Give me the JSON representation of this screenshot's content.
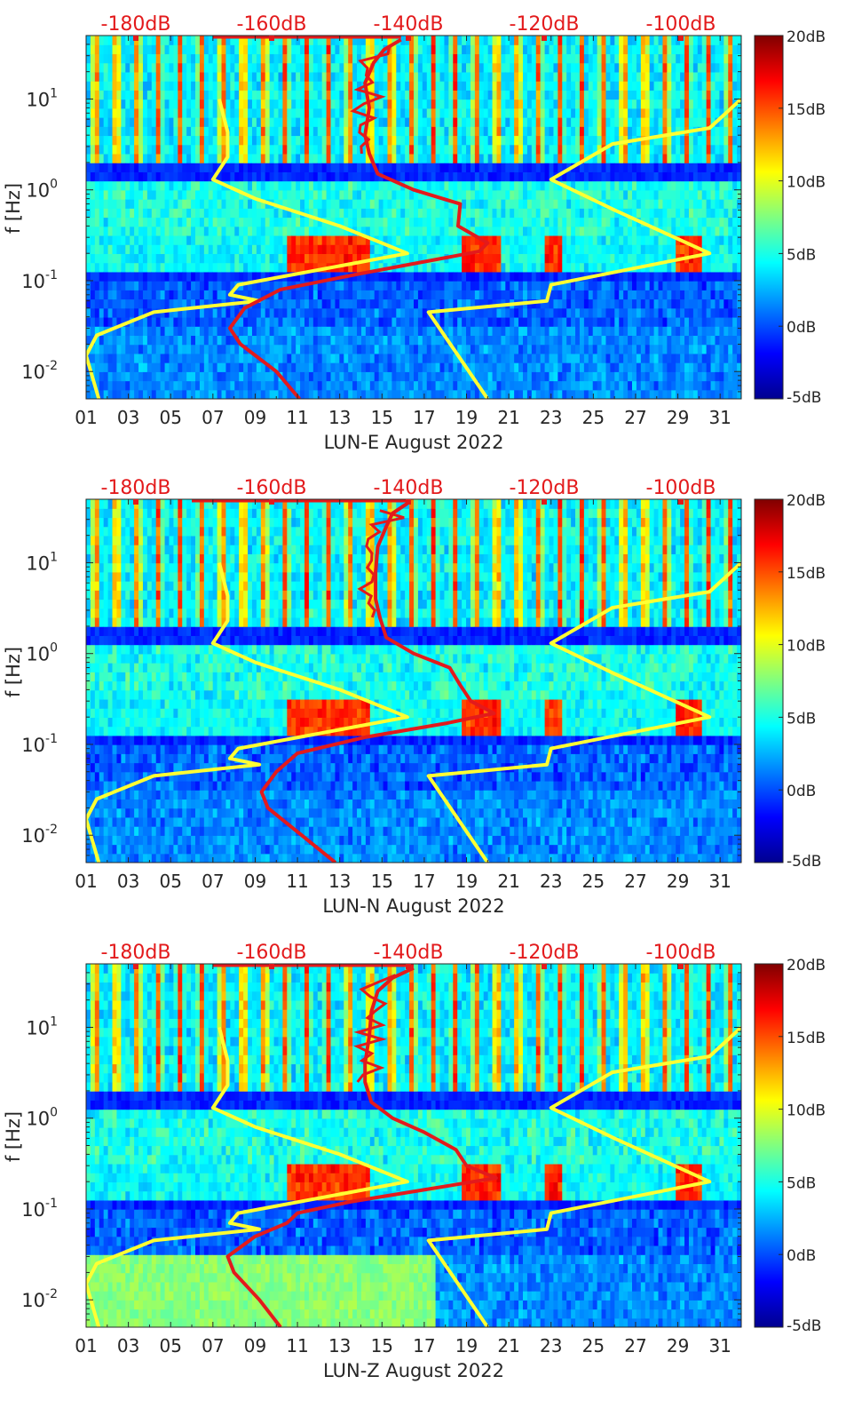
{
  "chart_data": [
    {
      "type": "heatmap",
      "xlabel": "LUN-E August 2022",
      "ylabel": "f [Hz]",
      "xticks": [
        "01",
        "03",
        "05",
        "07",
        "09",
        "11",
        "13",
        "15",
        "17",
        "19",
        "21",
        "23",
        "25",
        "27",
        "29",
        "31"
      ],
      "yticks": [
        {
          "base": "10",
          "exp": "-2",
          "value": 0.01
        },
        {
          "base": "10",
          "exp": "-1",
          "value": 0.1
        },
        {
          "base": "10",
          "exp": "0",
          "value": 1
        },
        {
          "base": "10",
          "exp": "1",
          "value": 10
        }
      ],
      "xlim": [
        1,
        32
      ],
      "ylim": [
        0.005,
        50
      ],
      "yscale": "log",
      "top_axis_labels": [
        "-180dB",
        "-160dB",
        "-140dB",
        "-120dB",
        "-100dB"
      ],
      "colorbar": {
        "labels": [
          "20dB",
          "15dB",
          "10dB",
          "5dB",
          "0dB",
          "-5dB"
        ],
        "range": [
          -5,
          20
        ]
      },
      "colors": {
        "low_model": "#ffff33",
        "high_model": "#ffff33",
        "median": "#e31a1c",
        "top_axis": "#e31a1c"
      },
      "noise_models": {
        "low": [
          [
            0.005,
            1.6
          ],
          [
            0.015,
            1.0
          ],
          [
            0.025,
            1.5
          ],
          [
            0.045,
            4.2
          ],
          [
            0.06,
            9.2
          ],
          [
            0.07,
            7.8
          ],
          [
            0.09,
            8.2
          ],
          [
            0.2,
            16.2
          ],
          [
            0.4,
            13.0
          ],
          [
            0.8,
            9.0
          ],
          [
            1.3,
            7.0
          ],
          [
            2.3,
            7.7
          ],
          [
            4.3,
            7.7
          ],
          [
            10,
            7.3
          ]
        ],
        "high": [
          [
            0.005,
            20.0
          ],
          [
            0.045,
            17.2
          ],
          [
            0.06,
            22.8
          ],
          [
            0.09,
            23.0
          ],
          [
            0.2,
            30.5
          ],
          [
            0.6,
            26.0
          ],
          [
            1.3,
            23.0
          ],
          [
            3.2,
            25.9
          ],
          [
            4.8,
            30.5
          ],
          [
            10,
            32.0
          ]
        ]
      },
      "median_psd": [
        [
          0.005,
          11.1
        ],
        [
          0.01,
          10.0
        ],
        [
          0.02,
          8.3
        ],
        [
          0.03,
          7.8
        ],
        [
          0.05,
          8.5
        ],
        [
          0.08,
          10.2
        ],
        [
          0.12,
          14.0
        ],
        [
          0.17,
          17.5
        ],
        [
          0.21,
          19.6
        ],
        [
          0.26,
          20.0
        ],
        [
          0.4,
          18.6
        ],
        [
          0.7,
          18.7
        ],
        [
          1.0,
          16.5
        ],
        [
          1.5,
          14.8
        ],
        [
          2.5,
          14.4
        ],
        [
          4,
          14.2
        ],
        [
          8,
          14.4
        ],
        [
          15,
          14.2
        ],
        [
          25,
          14.6
        ],
        [
          35,
          15.1
        ],
        [
          45,
          15.9
        ]
      ],
      "median_top_start": 7.0
    },
    {
      "type": "heatmap",
      "xlabel": "LUN-N August 2022",
      "ylabel": "f [Hz]",
      "xticks": [
        "01",
        "03",
        "05",
        "07",
        "09",
        "11",
        "13",
        "15",
        "17",
        "19",
        "21",
        "23",
        "25",
        "27",
        "29",
        "31"
      ],
      "yticks": [
        {
          "base": "10",
          "exp": "-2",
          "value": 0.01
        },
        {
          "base": "10",
          "exp": "-1",
          "value": 0.1
        },
        {
          "base": "10",
          "exp": "0",
          "value": 1
        },
        {
          "base": "10",
          "exp": "1",
          "value": 10
        }
      ],
      "xlim": [
        1,
        32
      ],
      "ylim": [
        0.005,
        50
      ],
      "yscale": "log",
      "top_axis_labels": [
        "-180dB",
        "-160dB",
        "-140dB",
        "-120dB",
        "-100dB"
      ],
      "colorbar": {
        "labels": [
          "20dB",
          "15dB",
          "10dB",
          "5dB",
          "0dB",
          "-5dB"
        ],
        "range": [
          -5,
          20
        ]
      },
      "colors": {
        "low_model": "#ffff33",
        "high_model": "#ffff33",
        "median": "#e31a1c",
        "top_axis": "#e31a1c"
      },
      "noise_models": {
        "low": [
          [
            0.005,
            1.6
          ],
          [
            0.015,
            1.0
          ],
          [
            0.025,
            1.5
          ],
          [
            0.045,
            4.2
          ],
          [
            0.06,
            9.2
          ],
          [
            0.07,
            7.8
          ],
          [
            0.09,
            8.2
          ],
          [
            0.2,
            16.2
          ],
          [
            0.4,
            13.0
          ],
          [
            0.8,
            9.0
          ],
          [
            1.3,
            7.0
          ],
          [
            2.3,
            7.7
          ],
          [
            4.3,
            7.7
          ],
          [
            10,
            7.3
          ]
        ],
        "high": [
          [
            0.005,
            20.0
          ],
          [
            0.045,
            17.2
          ],
          [
            0.06,
            22.8
          ],
          [
            0.09,
            23.0
          ],
          [
            0.2,
            30.5
          ],
          [
            0.6,
            26.0
          ],
          [
            1.3,
            23.0
          ],
          [
            3.2,
            25.9
          ],
          [
            4.8,
            30.5
          ],
          [
            10,
            32.0
          ]
        ]
      },
      "median_psd": [
        [
          0.005,
          12.8
        ],
        [
          0.01,
          11.2
        ],
        [
          0.02,
          9.6
        ],
        [
          0.03,
          9.3
        ],
        [
          0.05,
          10.0
        ],
        [
          0.08,
          11.0
        ],
        [
          0.12,
          14.2
        ],
        [
          0.17,
          18.0
        ],
        [
          0.22,
          20.3
        ],
        [
          0.3,
          19.2
        ],
        [
          0.45,
          18.7
        ],
        [
          0.7,
          18.2
        ],
        [
          1.0,
          16.5
        ],
        [
          1.5,
          15.2
        ],
        [
          2.5,
          14.9
        ],
        [
          4,
          14.7
        ],
        [
          8,
          14.7
        ],
        [
          15,
          14.8
        ],
        [
          25,
          15.2
        ],
        [
          35,
          15.5
        ],
        [
          45,
          16.2
        ]
      ],
      "median_top_start": 6.0
    },
    {
      "type": "heatmap",
      "xlabel": "LUN-Z August 2022",
      "ylabel": "f [Hz]",
      "xticks": [
        "01",
        "03",
        "05",
        "07",
        "09",
        "11",
        "13",
        "15",
        "17",
        "19",
        "21",
        "23",
        "25",
        "27",
        "29",
        "31"
      ],
      "yticks": [
        {
          "base": "10",
          "exp": "-2",
          "value": 0.01
        },
        {
          "base": "10",
          "exp": "-1",
          "value": 0.1
        },
        {
          "base": "10",
          "exp": "0",
          "value": 1
        },
        {
          "base": "10",
          "exp": "1",
          "value": 10
        }
      ],
      "xlim": [
        1,
        32
      ],
      "ylim": [
        0.005,
        50
      ],
      "yscale": "log",
      "top_axis_labels": [
        "-180dB",
        "-160dB",
        "-140dB",
        "-120dB",
        "-100dB"
      ],
      "colorbar": {
        "labels": [
          "20dB",
          "15dB",
          "10dB",
          "5dB",
          "0dB",
          "-5dB"
        ],
        "range": [
          -5,
          20
        ]
      },
      "colors": {
        "low_model": "#ffff33",
        "high_model": "#ffff33",
        "median": "#e31a1c",
        "top_axis": "#e31a1c"
      },
      "noise_models": {
        "low": [
          [
            0.005,
            1.6
          ],
          [
            0.015,
            1.0
          ],
          [
            0.025,
            1.5
          ],
          [
            0.045,
            4.2
          ],
          [
            0.06,
            9.2
          ],
          [
            0.07,
            7.8
          ],
          [
            0.09,
            8.2
          ],
          [
            0.2,
            16.2
          ],
          [
            0.4,
            13.0
          ],
          [
            0.8,
            9.0
          ],
          [
            1.3,
            7.0
          ],
          [
            2.3,
            7.7
          ],
          [
            4.3,
            7.7
          ],
          [
            10,
            7.3
          ]
        ],
        "high": [
          [
            0.005,
            20.0
          ],
          [
            0.045,
            17.2
          ],
          [
            0.06,
            22.8
          ],
          [
            0.09,
            23.0
          ],
          [
            0.2,
            30.5
          ],
          [
            0.6,
            26.0
          ],
          [
            1.3,
            23.0
          ],
          [
            3.2,
            25.9
          ],
          [
            4.8,
            30.5
          ],
          [
            10,
            32.0
          ]
        ]
      },
      "median_psd": [
        [
          0.005,
          10.2
        ],
        [
          0.01,
          9.2
        ],
        [
          0.02,
          8.0
        ],
        [
          0.03,
          7.7
        ],
        [
          0.05,
          9.0
        ],
        [
          0.07,
          10.5
        ],
        [
          0.09,
          11.0
        ],
        [
          0.12,
          13.5
        ],
        [
          0.17,
          17.5
        ],
        [
          0.22,
          20.4
        ],
        [
          0.3,
          19.0
        ],
        [
          0.45,
          18.5
        ],
        [
          0.7,
          17.0
        ],
        [
          1.0,
          15.5
        ],
        [
          1.5,
          14.5
        ],
        [
          2.5,
          14.2
        ],
        [
          4,
          14.2
        ],
        [
          8,
          14.4
        ],
        [
          15,
          14.5
        ],
        [
          25,
          14.8
        ],
        [
          35,
          15.5
        ],
        [
          45,
          16.5
        ]
      ],
      "median_top_start": 7.0
    }
  ]
}
